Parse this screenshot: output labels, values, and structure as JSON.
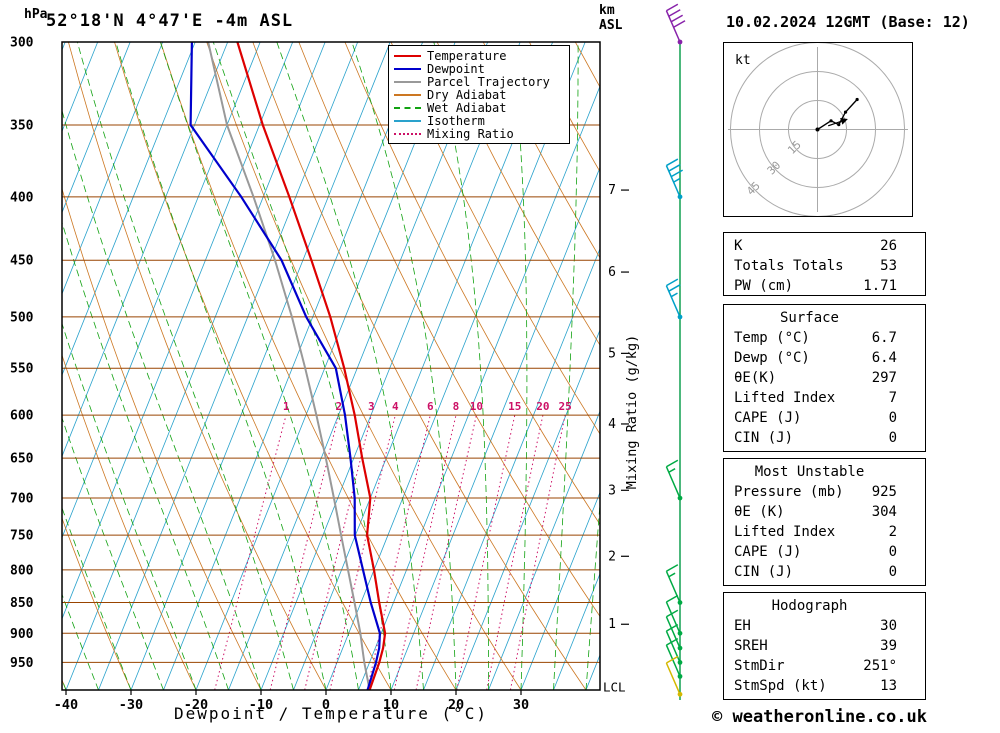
{
  "header": {
    "pressure_unit": "hPa",
    "station": "52°18'N 4°47'E -4m ASL",
    "datetime": "10.02.2024 12GMT (Base: 12)",
    "km_unit": "km",
    "km_datum": "ASL"
  },
  "axes": {
    "xlabel": "Dewpoint / Temperature (°C)",
    "pressure_ticks": [
      300,
      350,
      400,
      450,
      500,
      550,
      600,
      650,
      700,
      750,
      800,
      850,
      900,
      950
    ],
    "temp_ticks": [
      -40,
      -30,
      -20,
      -10,
      0,
      10,
      20,
      30
    ],
    "km_axis_label": "km ASL",
    "mixing_ratio_axis_label": "Mixing Ratio (g/kg)",
    "lcl_label": "LCL"
  },
  "legend": [
    {
      "label": "Temperature",
      "color": "#dd0000",
      "style": "solid"
    },
    {
      "label": "Dewpoint",
      "color": "#0000cc",
      "style": "solid"
    },
    {
      "label": "Parcel Trajectory",
      "color": "#999999",
      "style": "solid"
    },
    {
      "label": "Dry Adiabat",
      "color": "#cc7722",
      "style": "solid"
    },
    {
      "label": "Wet Adiabat",
      "color": "#11a211",
      "style": "dashed"
    },
    {
      "label": "Isotherm",
      "color": "#2aa2cc",
      "style": "solid"
    },
    {
      "label": "Mixing Ratio",
      "color": "#cc1166",
      "style": "dotted"
    }
  ],
  "colors": {
    "temperature": "#dd0000",
    "dewpoint": "#0000cc",
    "parcel": "#999999",
    "dry_adiabat": "#cc7722",
    "wet_adiabat": "#11a211",
    "isotherm": "#2aa2cc",
    "mixing_ratio": "#cc1166",
    "pressure_line": "#994400",
    "frame": "#000000",
    "wind_staff": "#009944"
  },
  "chart_data": {
    "type": "line",
    "title": "Skew-T log-P sounding 52°18'N 4°47'E -4m ASL 10.02.2024 12GMT",
    "y_axis": {
      "label": "hPa",
      "scale": "log",
      "range": [
        300,
        1000
      ],
      "ticks": [
        300,
        350,
        400,
        450,
        500,
        550,
        600,
        650,
        700,
        750,
        800,
        850,
        900,
        950
      ]
    },
    "x_axis": {
      "label": "Dewpoint / Temperature (°C)",
      "range_at_surface": [
        -40,
        42
      ],
      "ticks": [
        -40,
        -30,
        -20,
        -10,
        0,
        10,
        20,
        30
      ]
    },
    "pressure_levels": [
      1000,
      950,
      925,
      900,
      850,
      800,
      750,
      700,
      650,
      600,
      550,
      500,
      450,
      400,
      350,
      300
    ],
    "series": [
      {
        "name": "Temperature",
        "color_key": "temperature",
        "values": [
          6.7,
          6.5,
          6.2,
          5.6,
          2.8,
          0.0,
          -3.2,
          -5.0,
          -8.7,
          -12.5,
          -17.0,
          -22.3,
          -28.7,
          -36.0,
          -44.5,
          -53.5
        ]
      },
      {
        "name": "Dewpoint",
        "color_key": "dewpoint",
        "values": [
          6.4,
          6.0,
          5.6,
          4.8,
          1.5,
          -1.7,
          -5.1,
          -7.4,
          -10.5,
          -14.0,
          -18.3,
          -26.0,
          -33.3,
          -43.4,
          -55.6,
          -60.5
        ]
      },
      {
        "name": "Parcel Trajectory",
        "color_key": "parcel",
        "values": [
          6.7,
          4.2,
          3.0,
          1.8,
          -1.0,
          -4.0,
          -7.2,
          -10.6,
          -14.3,
          -18.4,
          -23.0,
          -28.2,
          -34.3,
          -41.5,
          -50.0,
          -58.0
        ]
      }
    ],
    "mixing_ratio_g_kg": [
      1,
      2,
      3,
      4,
      6,
      8,
      10,
      15,
      20,
      25
    ],
    "km_asl_marks": [
      {
        "km": 1,
        "pressure": 885
      },
      {
        "km": 2,
        "pressure": 780
      },
      {
        "km": 3,
        "pressure": 690
      },
      {
        "km": 4,
        "pressure": 610
      },
      {
        "km": 5,
        "pressure": 535
      },
      {
        "km": 6,
        "pressure": 460
      },
      {
        "km": 7,
        "pressure": 395
      }
    ],
    "lcl": {
      "label": "LCL",
      "pressure": 995
    },
    "wind_barbs": [
      {
        "pressure": 300,
        "speed_kt": 40,
        "direction_deg": 250,
        "color": "#8822aa"
      },
      {
        "pressure": 400,
        "speed_kt": 35,
        "direction_deg": 250,
        "color": "#00a0c8"
      },
      {
        "pressure": 500,
        "speed_kt": 25,
        "direction_deg": 250,
        "color": "#00a0c8"
      },
      {
        "pressure": 700,
        "speed_kt": 15,
        "direction_deg": 245,
        "color": "#00aa44"
      },
      {
        "pressure": 850,
        "speed_kt": 15,
        "direction_deg": 240,
        "color": "#00aa44"
      },
      {
        "pressure": 900,
        "speed_kt": 10,
        "direction_deg": 235,
        "color": "#00aa44"
      },
      {
        "pressure": 925,
        "speed_kt": 10,
        "direction_deg": 235,
        "color": "#00aa44"
      },
      {
        "pressure": 950,
        "speed_kt": 10,
        "direction_deg": 230,
        "color": "#00aa44"
      },
      {
        "pressure": 975,
        "speed_kt": 10,
        "direction_deg": 230,
        "color": "#00aa44"
      },
      {
        "pressure": 1008,
        "speed_kt": 10,
        "direction_deg": 230,
        "color": "#d4b800"
      }
    ],
    "hodograph": {
      "unit": "kt",
      "rings_kt": [
        15,
        30,
        45
      ],
      "trace_uv_kt": [
        [
          0,
          0
        ],
        [
          7,
          4.5
        ],
        [
          11,
          2.5
        ],
        [
          14.5,
          9
        ],
        [
          20.5,
          15.5
        ]
      ],
      "storm_motion_dir_deg": 251,
      "storm_motion_speed_kt": 13
    }
  },
  "tables": [
    {
      "rows": [
        [
          "K",
          "26"
        ],
        [
          "Totals Totals",
          "53"
        ],
        [
          "PW (cm)",
          "1.71"
        ]
      ]
    },
    {
      "title": "Surface",
      "rows": [
        [
          "Temp (°C)",
          "6.7"
        ],
        [
          "Dewp (°C)",
          "6.4"
        ],
        [
          "θE(K)",
          "297"
        ],
        [
          "Lifted Index",
          "7"
        ],
        [
          "CAPE (J)",
          "0"
        ],
        [
          "CIN (J)",
          "0"
        ]
      ]
    },
    {
      "title": "Most Unstable",
      "rows": [
        [
          "Pressure (mb)",
          "925"
        ],
        [
          "θE (K)",
          "304"
        ],
        [
          "Lifted Index",
          "2"
        ],
        [
          "CAPE (J)",
          "0"
        ],
        [
          "CIN (J)",
          "0"
        ]
      ]
    },
    {
      "title": "Hodograph",
      "rows": [
        [
          "EH",
          "30"
        ],
        [
          "SREH",
          "39"
        ],
        [
          "StmDir",
          "251°"
        ],
        [
          "StmSpd (kt)",
          "13"
        ]
      ]
    }
  ],
  "footer": {
    "copyright": "© weatheronline.co.uk"
  }
}
